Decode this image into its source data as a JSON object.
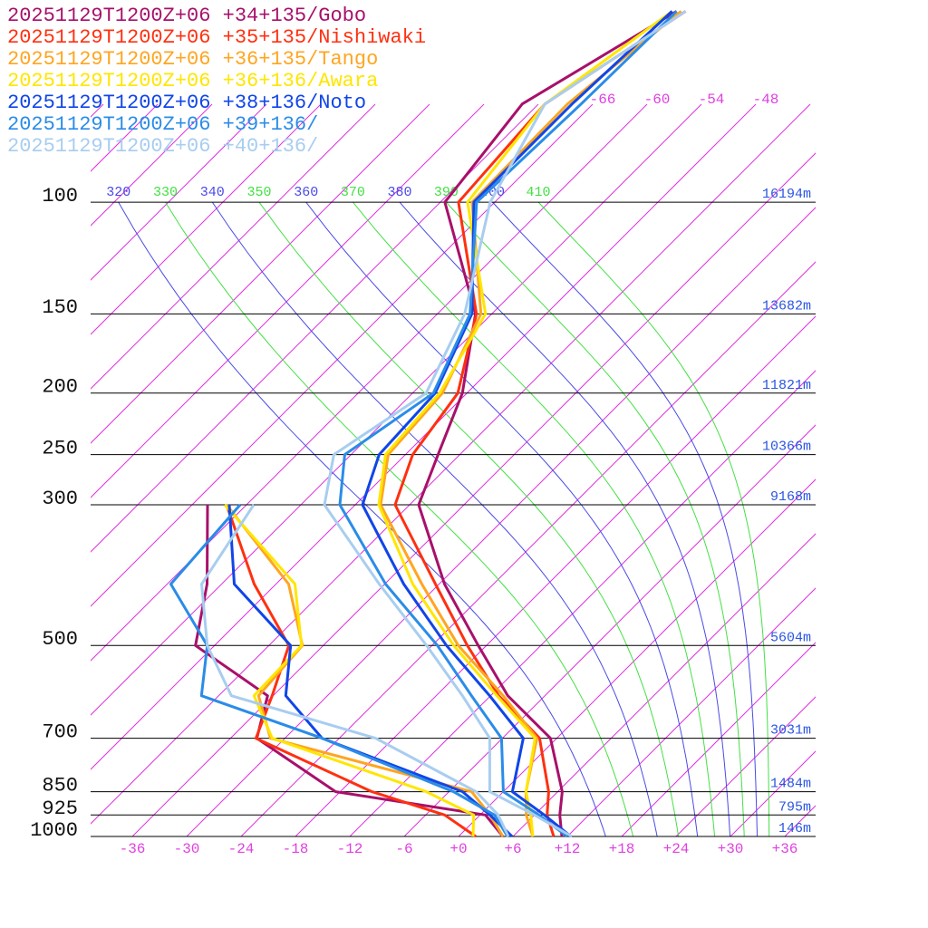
{
  "chart_data": {
    "type": "skewt",
    "levels": [
      1000,
      925,
      850,
      700,
      600,
      500,
      400,
      300,
      250,
      200,
      150,
      100,
      70,
      50
    ],
    "ylim": [
      1000,
      48
    ],
    "yticks": [
      100,
      150,
      200,
      250,
      300,
      500,
      700,
      850,
      925,
      1000
    ],
    "heights": [
      "16194m",
      "13682m",
      "11821m",
      "10366m",
      "9168m",
      "5604m",
      "3031m",
      "1484m",
      "795m",
      "146m"
    ],
    "xlim": [
      -40.6,
      39.4
    ],
    "xticks": [
      -36,
      -30,
      -24,
      -18,
      -12,
      -6,
      {
        "value": 0,
        "label": "+0"
      },
      {
        "value": 6,
        "label": "+6"
      },
      {
        "value": 12,
        "label": "+12"
      },
      {
        "value": 18,
        "label": "+18"
      },
      {
        "value": 24,
        "label": "+24"
      },
      {
        "value": 30,
        "label": "+30"
      },
      {
        "value": 36,
        "label": "+36"
      }
    ],
    "isotherm_labels": [
      -66,
      -60,
      -54,
      -48
    ],
    "isotherm_color": "#e030e0",
    "theta_e": [
      320,
      330,
      340,
      350,
      360,
      370,
      380,
      390,
      400,
      410
    ],
    "theta_e_colors": [
      "#4a4ae6",
      "#44e044"
    ],
    "series": [
      {
        "name": "20251129T1200Z+06 +34+135/Gobo",
        "color": "#a8106a",
        "temperature": [
          11.4,
          8.8,
          6.5,
          -0.7,
          -10.1,
          -18.9,
          -29.4,
          -41,
          -44.4,
          -48.5,
          -55.8,
          -71.5,
          -73.8,
          -67
        ],
        "dewpoint": [
          4.9,
          0.6,
          -18.5,
          -33.1,
          -36.6,
          -50.1,
          -55.6,
          -64.3,
          null,
          null,
          null,
          null,
          null,
          null
        ]
      },
      {
        "name": "20251129T1200Z+06 +35+135/Nishiwaki",
        "color": "#ff3010",
        "temperature": [
          10.5,
          7.4,
          5.0,
          -1.9,
          -11.1,
          -20.1,
          -30.4,
          -43.6,
          -47.2,
          -49,
          -55.7,
          -70,
          -71.3,
          -66
        ],
        "dewpoint": [
          1.9,
          -3.9,
          -14.5,
          -33.2,
          -36.1,
          -39.8,
          -50.4,
          -62.2,
          null,
          null,
          null,
          null,
          null,
          null
        ]
      },
      {
        "name": "20251129T1200Z+06 +36+135/Tango",
        "color": "#ffa520",
        "temperature": [
          8.2,
          5.1,
          2.5,
          -2.2,
          -10.6,
          -21.1,
          -31.9,
          -45.2,
          -49.9,
          -50.7,
          -55.2,
          -68.5,
          -68.8,
          -66.5
        ],
        "dewpoint": [
          4.9,
          1.1,
          -3.5,
          -31.6,
          -37.6,
          -38.3,
          -46.6,
          -62.2,
          null,
          null,
          null,
          null,
          null,
          null
        ]
      },
      {
        "name": "20251129T1200Z+06 +36+136/Awara",
        "color": "#ffe600",
        "temperature": [
          8.2,
          5.6,
          2.5,
          -2.4,
          -11.3,
          -21.6,
          -32.9,
          -45.4,
          -50.2,
          -51,
          -54.7,
          -69,
          -71.3,
          -67.5
        ],
        "dewpoint": [
          1.6,
          -0.7,
          -8.5,
          -31.4,
          -38.1,
          -38.4,
          -45.9,
          -62.4,
          null,
          null,
          null,
          null,
          null,
          null
        ]
      },
      {
        "name": "20251129T1200Z+06 +38+136/Noto",
        "color": "#1045e8",
        "temperature": [
          12.4,
          7.1,
          1.0,
          -3.7,
          -12.1,
          -22.4,
          -33.9,
          -47.2,
          -50.9,
          -51.5,
          -56.2,
          -68.3,
          -68.3,
          -67.5
        ],
        "dewpoint": [
          5.9,
          1.1,
          -4.5,
          -25.9,
          -34.6,
          -39.6,
          -52.6,
          -61.9,
          null,
          null,
          null,
          null,
          null,
          null
        ]
      },
      {
        "name": "20251129T1200Z+06 +39+136/",
        "color": "#2a8ce8",
        "temperature": [
          12.0,
          6.5,
          0,
          -6.1,
          -14.1,
          -23.4,
          -35.9,
          -49.7,
          -54.7,
          -51.7,
          -56.4,
          -68,
          -67.3,
          -67
        ],
        "dewpoint": [
          5.4,
          1.6,
          -5.5,
          -25.9,
          -43.9,
          -48.8,
          -59.6,
          -60.7,
          null,
          null,
          null,
          null,
          null,
          null
        ]
      },
      {
        "name": "20251129T1200Z+06 +40+136/",
        "color": "#a8cdf0",
        "temperature": [
          12.5,
          6,
          -1.5,
          -7.4,
          -15.1,
          -24.6,
          -36.6,
          -51.4,
          -55.9,
          -52.5,
          -57,
          -66.5,
          -71.3,
          -66
        ],
        "dewpoint": [
          5.5,
          2.0,
          -3,
          -20,
          -40.6,
          -48.8,
          -56.2,
          -59.2,
          null,
          null,
          null,
          null,
          null,
          null
        ]
      }
    ]
  }
}
